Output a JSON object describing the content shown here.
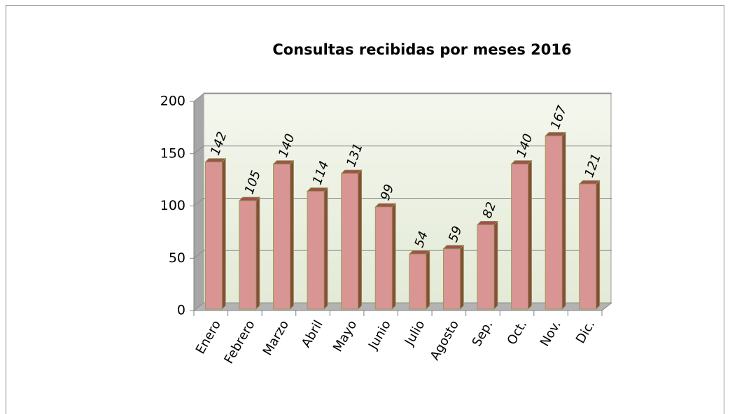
{
  "chart_data": {
    "type": "bar",
    "title": "Consultas recibidas por meses 2016",
    "categories": [
      "Enero",
      "Febrero",
      "Marzo",
      "Abril",
      "Mayo",
      "Junio",
      "Julio",
      "Agosto",
      "Sep.",
      "Oct.",
      "Nov.",
      "Dic."
    ],
    "values": [
      142,
      105,
      140,
      114,
      131,
      99,
      54,
      59,
      82,
      140,
      167,
      121
    ],
    "color": "#d99594",
    "ylim": [
      0,
      200
    ],
    "yticks": [
      0,
      50,
      100,
      150,
      200
    ],
    "grid": true
  }
}
